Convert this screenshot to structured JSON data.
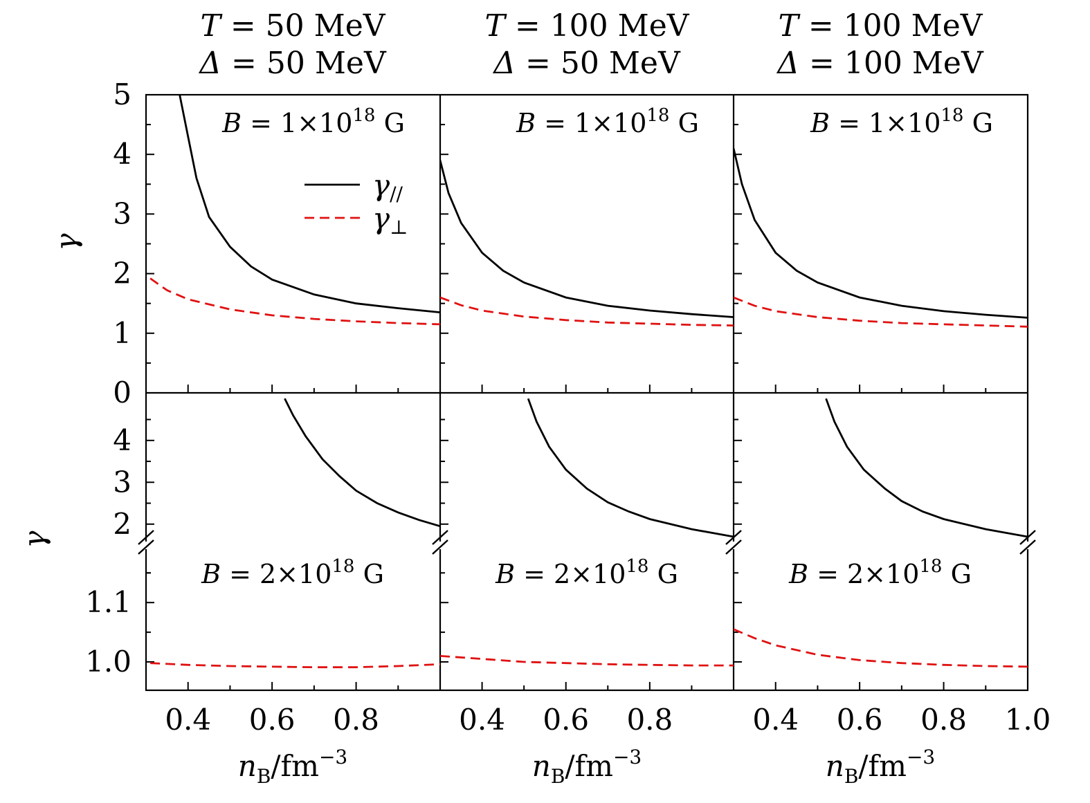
{
  "chart_data": {
    "type": "line",
    "column_titles": [
      {
        "T_label": "T",
        "T_value": "= 50 MeV",
        "D_label": "Δ",
        "D_value": "= 50 MeV"
      },
      {
        "T_label": "T",
        "T_value": "= 100 MeV",
        "D_label": "Δ",
        "D_value": "= 50 MeV"
      },
      {
        "T_label": "T",
        "T_value": "= 100 MeV",
        "D_label": "Δ",
        "D_value": "= 100 MeV"
      }
    ],
    "xlabel": {
      "main": "n",
      "sub": "B",
      "rest": "/fm",
      "sup": "−3"
    },
    "ylabel": "γ",
    "xlim": [
      0.3,
      1.0
    ],
    "x_ticks": [
      0.4,
      0.6,
      0.8
    ],
    "x_ticks_last_column": [
      0.4,
      0.6,
      0.8,
      1.0
    ],
    "x_tick_labels": [
      "0.4",
      "0.6",
      "0.8"
    ],
    "x_tick_labels_last_column": [
      "0.4",
      "0.6",
      "0.8",
      "1.0"
    ],
    "legend": [
      {
        "name": "γ//",
        "main": "γ",
        "sub": "//",
        "style": "solid",
        "color": "#000000"
      },
      {
        "name": "γ⊥",
        "main": "γ",
        "sub": "⊥",
        "style": "dashed",
        "color": "#e01212"
      }
    ],
    "rows": [
      {
        "field_label": {
          "pre": "B",
          "mid": " = 1×10",
          "sup": "18",
          "post": " G"
        },
        "ylim": [
          0,
          5
        ],
        "y_ticks": [
          0,
          1,
          2,
          3,
          4,
          5
        ],
        "y_tick_labels": [
          "0",
          "1",
          "2",
          "3",
          "4",
          "5"
        ],
        "panels": [
          {
            "series": [
              {
                "name": "γ//",
                "x": [
                  0.38,
                  0.4,
                  0.42,
                  0.45,
                  0.5,
                  0.55,
                  0.6,
                  0.7,
                  0.8,
                  0.9,
                  1.0
                ],
                "y": [
                  5.0,
                  4.3,
                  3.6,
                  2.95,
                  2.45,
                  2.12,
                  1.9,
                  1.65,
                  1.5,
                  1.42,
                  1.35
                ]
              },
              {
                "name": "γ⊥",
                "x": [
                  0.31,
                  0.35,
                  0.4,
                  0.5,
                  0.6,
                  0.7,
                  0.8,
                  0.9,
                  1.0
                ],
                "y": [
                  1.92,
                  1.72,
                  1.57,
                  1.4,
                  1.3,
                  1.24,
                  1.2,
                  1.17,
                  1.15
                ]
              }
            ]
          },
          {
            "series": [
              {
                "name": "γ//",
                "x": [
                  0.3,
                  0.32,
                  0.35,
                  0.4,
                  0.45,
                  0.5,
                  0.6,
                  0.7,
                  0.8,
                  0.9,
                  1.0
                ],
                "y": [
                  3.9,
                  3.35,
                  2.85,
                  2.35,
                  2.05,
                  1.85,
                  1.6,
                  1.46,
                  1.38,
                  1.32,
                  1.27
                ]
              },
              {
                "name": "γ⊥",
                "x": [
                  0.3,
                  0.35,
                  0.4,
                  0.5,
                  0.6,
                  0.7,
                  0.8,
                  0.9,
                  1.0
                ],
                "y": [
                  1.6,
                  1.47,
                  1.38,
                  1.28,
                  1.22,
                  1.18,
                  1.16,
                  1.14,
                  1.13
                ]
              }
            ]
          },
          {
            "series": [
              {
                "name": "γ//",
                "x": [
                  0.3,
                  0.32,
                  0.35,
                  0.4,
                  0.45,
                  0.5,
                  0.6,
                  0.7,
                  0.8,
                  0.9,
                  1.0
                ],
                "y": [
                  4.1,
                  3.5,
                  2.9,
                  2.35,
                  2.05,
                  1.85,
                  1.6,
                  1.46,
                  1.37,
                  1.31,
                  1.26
                ]
              },
              {
                "name": "γ⊥",
                "x": [
                  0.3,
                  0.35,
                  0.4,
                  0.5,
                  0.6,
                  0.7,
                  0.8,
                  0.9,
                  1.0
                ],
                "y": [
                  1.6,
                  1.46,
                  1.37,
                  1.27,
                  1.21,
                  1.17,
                  1.15,
                  1.13,
                  1.11
                ]
              }
            ]
          }
        ]
      },
      {
        "field_label": {
          "pre": "B",
          "mid": " = 2×10",
          "sup": "18",
          "post": " G"
        },
        "broken_axis": true,
        "upper_ylim": [
          1.6,
          5.0
        ],
        "upper_y_ticks": [
          2,
          3,
          4
        ],
        "upper_y_tick_labels": [
          "2",
          "3",
          "4"
        ],
        "lower_ylim": [
          0.955,
          1.185
        ],
        "lower_y_ticks": [
          1.0,
          1.1
        ],
        "lower_y_tick_labels": [
          "1.0",
          "1.1"
        ],
        "panels": [
          {
            "series": [
              {
                "name": "γ//",
                "x": [
                  0.63,
                  0.65,
                  0.68,
                  0.72,
                  0.76,
                  0.8,
                  0.85,
                  0.9,
                  0.95,
                  1.0
                ],
                "y": [
                  5.0,
                  4.6,
                  4.1,
                  3.55,
                  3.15,
                  2.8,
                  2.5,
                  2.28,
                  2.1,
                  1.95
                ]
              },
              {
                "name": "γ⊥",
                "x": [
                  0.31,
                  0.4,
                  0.5,
                  0.6,
                  0.7,
                  0.8,
                  0.9,
                  1.0
                ],
                "y": [
                  0.998,
                  0.995,
                  0.993,
                  0.992,
                  0.991,
                  0.991,
                  0.993,
                  0.996
                ]
              }
            ]
          },
          {
            "series": [
              {
                "name": "γ//",
                "x": [
                  0.51,
                  0.53,
                  0.56,
                  0.6,
                  0.65,
                  0.7,
                  0.75,
                  0.8,
                  0.9,
                  1.0
                ],
                "y": [
                  5.0,
                  4.45,
                  3.85,
                  3.3,
                  2.85,
                  2.52,
                  2.3,
                  2.12,
                  1.88,
                  1.7
                ]
              },
              {
                "name": "γ⊥",
                "x": [
                  0.3,
                  0.4,
                  0.5,
                  0.6,
                  0.7,
                  0.8,
                  0.9,
                  1.0
                ],
                "y": [
                  1.01,
                  1.005,
                  1.0,
                  0.998,
                  0.996,
                  0.995,
                  0.994,
                  0.994
                ]
              }
            ]
          },
          {
            "series": [
              {
                "name": "γ//",
                "x": [
                  0.52,
                  0.54,
                  0.57,
                  0.61,
                  0.66,
                  0.7,
                  0.75,
                  0.8,
                  0.9,
                  1.0
                ],
                "y": [
                  5.0,
                  4.45,
                  3.85,
                  3.3,
                  2.85,
                  2.55,
                  2.3,
                  2.12,
                  1.88,
                  1.7
                ]
              },
              {
                "name": "γ⊥",
                "x": [
                  0.3,
                  0.35,
                  0.4,
                  0.5,
                  0.6,
                  0.7,
                  0.8,
                  0.9,
                  1.0
                ],
                "y": [
                  1.055,
                  1.04,
                  1.028,
                  1.012,
                  1.003,
                  0.998,
                  0.995,
                  0.993,
                  0.992
                ]
              }
            ]
          }
        ]
      }
    ]
  }
}
